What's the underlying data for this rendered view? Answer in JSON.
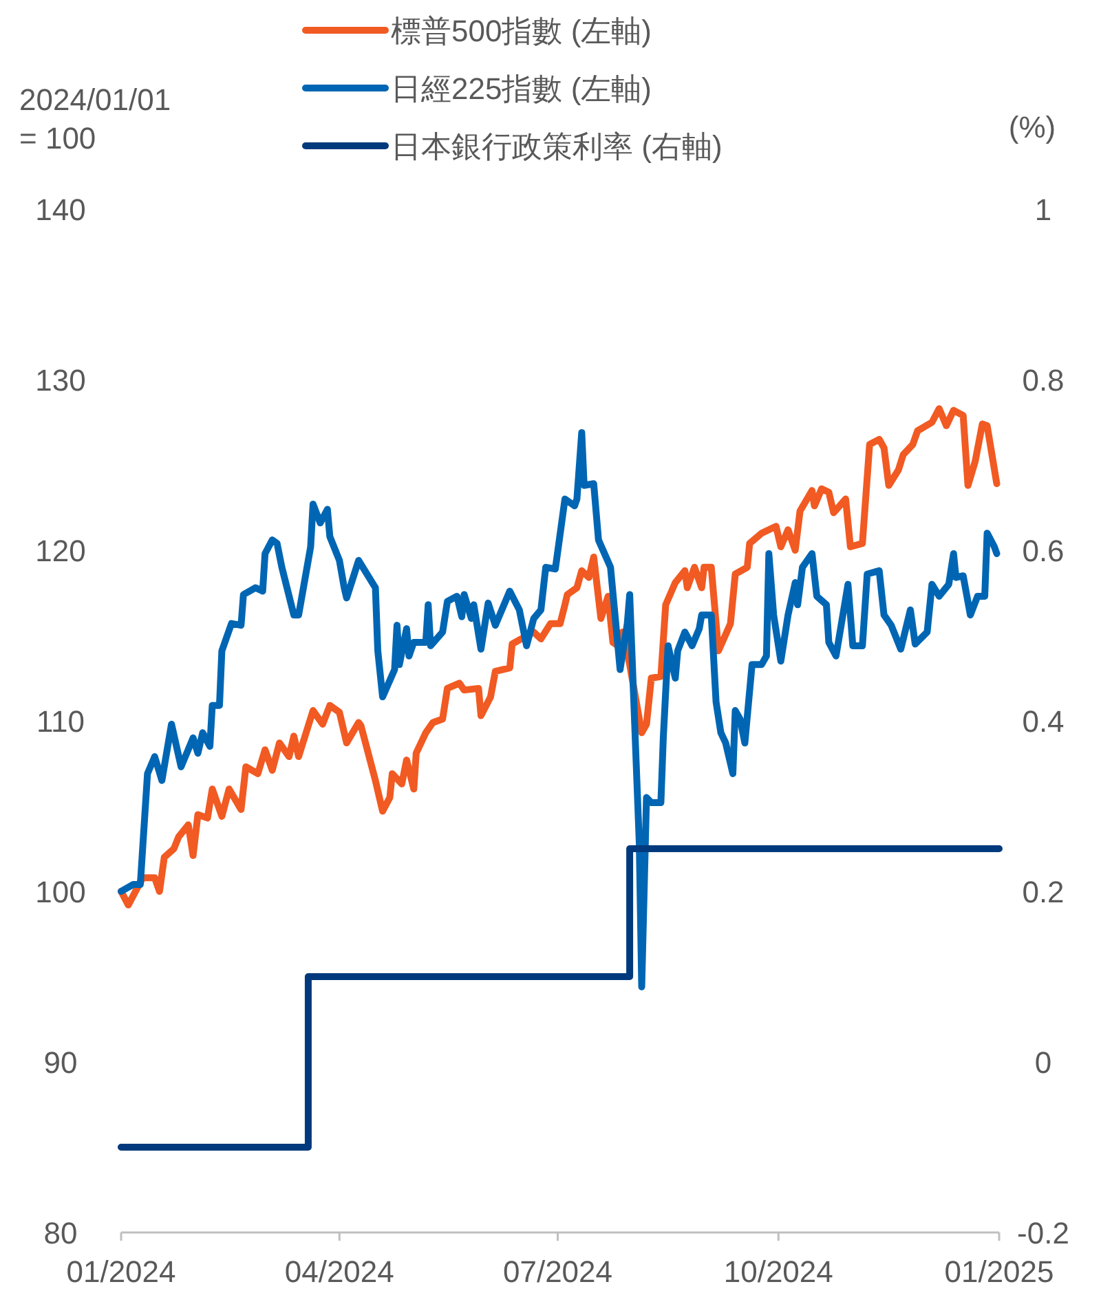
{
  "chart_data": {
    "type": "line",
    "ylabel": "2024/01/01\n= 100",
    "y2label": "(%)",
    "xlim": [
      "2024-01-01",
      "2025-01-01"
    ],
    "xticks": [
      {
        "value": "2024-01-01",
        "label": "01/2024"
      },
      {
        "value": "2024-04-01",
        "label": "04/2024"
      },
      {
        "value": "2024-07-01",
        "label": "07/2024"
      },
      {
        "value": "2024-10-01",
        "label": "10/2024"
      },
      {
        "value": "2025-01-01",
        "label": "01/2025"
      }
    ],
    "ylim": [
      80,
      140
    ],
    "yticks": [
      80,
      90,
      100,
      110,
      120,
      130,
      140
    ],
    "y2lim": [
      -0.2,
      1
    ],
    "y2ticks": [
      -0.2,
      0,
      0.2,
      0.4,
      0.6,
      0.8,
      1
    ],
    "legend": "top",
    "grid": false,
    "marker": "none",
    "line_style": "solid",
    "series": [
      {
        "name": "標普500指數 (左軸)",
        "color": "#f15a22",
        "x": [
          "2024-01-01",
          "2024-01-04",
          "2024-01-10",
          "2024-01-15",
          "2024-01-17",
          "2024-01-19",
          "2024-01-23",
          "2024-01-25",
          "2024-01-29",
          "2024-01-31",
          "2024-02-02",
          "2024-02-06",
          "2024-02-08",
          "2024-02-12",
          "2024-02-15",
          "2024-02-20",
          "2024-02-22",
          "2024-02-27",
          "2024-03-01",
          "2024-03-04",
          "2024-03-07",
          "2024-03-11",
          "2024-03-13",
          "2024-03-15",
          "2024-03-21",
          "2024-03-25",
          "2024-03-28",
          "2024-04-01",
          "2024-04-04",
          "2024-04-09",
          "2024-04-10",
          "2024-04-16",
          "2024-04-19",
          "2024-04-22",
          "2024-04-23",
          "2024-04-27",
          "2024-04-29",
          "2024-05-02",
          "2024-05-03",
          "2024-05-07",
          "2024-05-10",
          "2024-05-14",
          "2024-05-16",
          "2024-05-21",
          "2024-05-23",
          "2024-05-29",
          "2024-05-30",
          "2024-06-03",
          "2024-06-05",
          "2024-06-11",
          "2024-06-12",
          "2024-06-17",
          "2024-06-21",
          "2024-06-24",
          "2024-06-28",
          "2024-07-02",
          "2024-07-04",
          "2024-07-05",
          "2024-07-09",
          "2024-07-11",
          "2024-07-14",
          "2024-07-16",
          "2024-07-19",
          "2024-07-22",
          "2024-07-24",
          "2024-07-26",
          "2024-07-28",
          "2024-07-31",
          "2024-08-05",
          "2024-08-07",
          "2024-08-09",
          "2024-08-13",
          "2024-08-15",
          "2024-08-19",
          "2024-08-23",
          "2024-08-24",
          "2024-08-27",
          "2024-08-30",
          "2024-08-31",
          "2024-09-03",
          "2024-09-06",
          "2024-09-11",
          "2024-09-13",
          "2024-09-18",
          "2024-09-19",
          "2024-09-24",
          "2024-09-30",
          "2024-10-02",
          "2024-10-05",
          "2024-10-08",
          "2024-10-10",
          "2024-10-15",
          "2024-10-16",
          "2024-10-19",
          "2024-10-22",
          "2024-10-24",
          "2024-10-29",
          "2024-10-31",
          "2024-11-05",
          "2024-11-08",
          "2024-11-12",
          "2024-11-14",
          "2024-11-16",
          "2024-11-20",
          "2024-11-22",
          "2024-11-26",
          "2024-11-28",
          "2024-12-04",
          "2024-12-07",
          "2024-12-10",
          "2024-12-13",
          "2024-12-17",
          "2024-12-19",
          "2024-12-22",
          "2024-12-25",
          "2024-12-27",
          "2024-12-29",
          "2024-12-31"
        ],
        "values": [
          100.0,
          99.2,
          100.8,
          100.8,
          100.0,
          102.0,
          102.5,
          103.2,
          103.9,
          102.1,
          104.5,
          104.3,
          106.0,
          104.4,
          106.0,
          104.8,
          107.3,
          106.9,
          108.3,
          107.1,
          108.7,
          107.9,
          109.1,
          107.9,
          110.6,
          109.8,
          110.9,
          110.5,
          108.7,
          109.9,
          109.7,
          106.5,
          104.7,
          105.5,
          106.9,
          106.3,
          107.7,
          106.0,
          108.1,
          109.3,
          109.9,
          110.1,
          111.9,
          112.2,
          111.8,
          111.9,
          110.3,
          111.4,
          112.9,
          113.1,
          114.5,
          114.9,
          115.2,
          114.8,
          115.7,
          115.7,
          116.8,
          117.4,
          117.8,
          118.8,
          118.4,
          119.6,
          116.0,
          117.3,
          114.6,
          114.4,
          115.2,
          113.3,
          109.3,
          109.8,
          112.5,
          112.6,
          116.8,
          118.1,
          118.8,
          117.8,
          119.0,
          117.8,
          119.0,
          119.0,
          114.1,
          115.7,
          118.6,
          119.0,
          120.4,
          121.0,
          121.4,
          120.2,
          121.2,
          120.0,
          122.3,
          123.5,
          122.6,
          123.6,
          123.4,
          122.2,
          123.0,
          120.2,
          120.4,
          126.2,
          126.5,
          126.0,
          123.8,
          124.7,
          125.6,
          126.2,
          127.0,
          127.5,
          128.3,
          127.3,
          128.2,
          127.9,
          123.8,
          125.2,
          127.4,
          127.3,
          125.6,
          123.9
        ]
      },
      {
        "name": "日經225指數 (左軸)",
        "color": "#0066b3",
        "x": [
          "2024-01-01",
          "2024-01-06",
          "2024-01-09",
          "2024-01-12",
          "2024-01-15",
          "2024-01-18",
          "2024-01-22",
          "2024-01-26",
          "2024-01-31",
          "2024-02-02",
          "2024-02-04",
          "2024-02-07",
          "2024-02-08",
          "2024-02-11",
          "2024-02-12",
          "2024-02-16",
          "2024-02-20",
          "2024-02-21",
          "2024-02-26",
          "2024-02-29",
          "2024-03-01",
          "2024-03-04",
          "2024-03-06",
          "2024-03-08",
          "2024-03-13",
          "2024-03-15",
          "2024-03-20",
          "2024-03-21",
          "2024-03-24",
          "2024-03-27",
          "2024-03-28",
          "2024-04-01",
          "2024-04-03",
          "2024-04-04",
          "2024-04-09",
          "2024-04-16",
          "2024-04-17",
          "2024-04-19",
          "2024-04-24",
          "2024-04-25",
          "2024-04-26",
          "2024-04-29",
          "2024-04-30",
          "2024-05-02",
          "2024-05-07",
          "2024-05-08",
          "2024-05-09",
          "2024-05-14",
          "2024-05-16",
          "2024-05-20",
          "2024-05-22",
          "2024-05-23",
          "2024-05-26",
          "2024-05-27",
          "2024-05-30",
          "2024-06-02",
          "2024-06-05",
          "2024-06-11",
          "2024-06-15",
          "2024-06-18",
          "2024-06-21",
          "2024-06-24",
          "2024-06-26",
          "2024-06-30",
          "2024-07-04",
          "2024-07-08",
          "2024-07-09",
          "2024-07-11",
          "2024-07-12",
          "2024-07-16",
          "2024-07-18",
          "2024-07-23",
          "2024-07-27",
          "2024-07-30",
          "2024-07-31",
          "2024-08-04",
          "2024-08-05",
          "2024-08-07",
          "2024-08-09",
          "2024-08-13",
          "2024-08-14",
          "2024-08-16",
          "2024-08-19",
          "2024-08-20",
          "2024-08-23",
          "2024-08-26",
          "2024-08-29",
          "2024-08-30",
          "2024-09-03",
          "2024-09-05",
          "2024-09-07",
          "2024-09-09",
          "2024-09-12",
          "2024-09-13",
          "2024-09-15",
          "2024-09-17",
          "2024-09-20",
          "2024-09-24",
          "2024-09-26",
          "2024-09-27",
          "2024-09-29",
          "2024-10-02",
          "2024-10-05",
          "2024-10-08",
          "2024-10-09",
          "2024-10-11",
          "2024-10-15",
          "2024-10-17",
          "2024-10-21",
          "2024-10-22",
          "2024-10-25",
          "2024-10-30",
          "2024-11-01",
          "2024-11-05",
          "2024-11-07",
          "2024-11-12",
          "2024-11-14",
          "2024-11-17",
          "2024-11-21",
          "2024-11-25",
          "2024-11-27",
          "2024-12-02",
          "2024-12-04",
          "2024-12-07",
          "2024-12-11",
          "2024-12-13",
          "2024-12-14",
          "2024-12-17",
          "2024-12-20",
          "2024-12-23",
          "2024-12-26",
          "2024-12-27",
          "2024-12-30",
          "2024-12-31"
        ],
        "values": [
          100.0,
          100.4,
          100.4,
          106.9,
          107.9,
          106.5,
          109.8,
          107.3,
          109.0,
          108.1,
          109.3,
          108.5,
          110.9,
          110.9,
          114.1,
          115.7,
          115.6,
          117.4,
          117.8,
          117.6,
          119.8,
          120.6,
          120.4,
          119.0,
          116.2,
          116.2,
          120.2,
          122.7,
          121.6,
          122.4,
          120.8,
          119.4,
          117.8,
          117.2,
          119.4,
          117.8,
          114.1,
          111.4,
          113.0,
          115.6,
          113.3,
          115.4,
          113.8,
          114.6,
          114.6,
          116.8,
          114.4,
          115.2,
          117.0,
          117.3,
          116.1,
          117.4,
          116.0,
          116.8,
          114.2,
          116.9,
          115.6,
          117.6,
          116.5,
          114.4,
          116.0,
          116.5,
          119.0,
          118.9,
          123.0,
          122.6,
          123.0,
          126.9,
          123.8,
          123.9,
          120.6,
          119.0,
          113.0,
          115.7,
          117.4,
          102.8,
          94.4,
          105.5,
          105.2,
          105.2,
          109.0,
          114.4,
          112.5,
          114.1,
          115.2,
          114.4,
          115.4,
          116.2,
          116.2,
          111.1,
          109.3,
          108.7,
          106.9,
          110.6,
          110.1,
          108.7,
          113.3,
          113.3,
          113.8,
          119.8,
          116.2,
          113.5,
          116.2,
          118.1,
          116.8,
          119.0,
          119.8,
          117.3,
          116.8,
          114.6,
          113.8,
          118.0,
          114.4,
          114.4,
          118.6,
          118.8,
          116.2,
          115.6,
          114.2,
          116.5,
          114.5,
          115.2,
          118.0,
          117.3,
          118.0,
          119.8,
          118.4,
          118.5,
          116.2,
          117.3,
          117.3,
          121.0,
          120.2,
          119.8
        ]
      },
      {
        "name": "日本銀行政策利率 (右軸)",
        "color": "#003a7d",
        "type": "step",
        "axis": "y2",
        "x": [
          "2024-01-01",
          "2024-03-19",
          "2024-07-31",
          "2025-01-01"
        ],
        "values": [
          -0.1,
          0.1,
          0.25,
          0.25
        ]
      }
    ]
  }
}
